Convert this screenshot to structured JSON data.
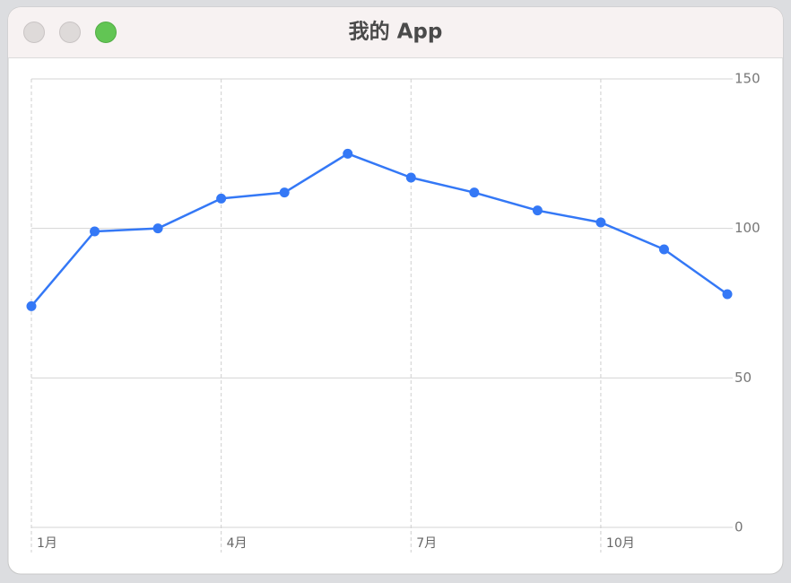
{
  "window": {
    "title": "我的 App"
  },
  "chart_data": {
    "type": "line",
    "categories": [
      "1月",
      null,
      null,
      "4月",
      null,
      null,
      "7月",
      null,
      null,
      "10月",
      null,
      null
    ],
    "series": [
      {
        "color": "#3478f6",
        "values": [
          74,
          99,
          100,
          110,
          112,
          125,
          117,
          112,
          106,
          102,
          93,
          78
        ]
      }
    ],
    "ylim": [
      0,
      150
    ],
    "yticks": [
      0,
      50,
      100,
      150
    ],
    "grid": true,
    "y_axis_side": "right"
  }
}
